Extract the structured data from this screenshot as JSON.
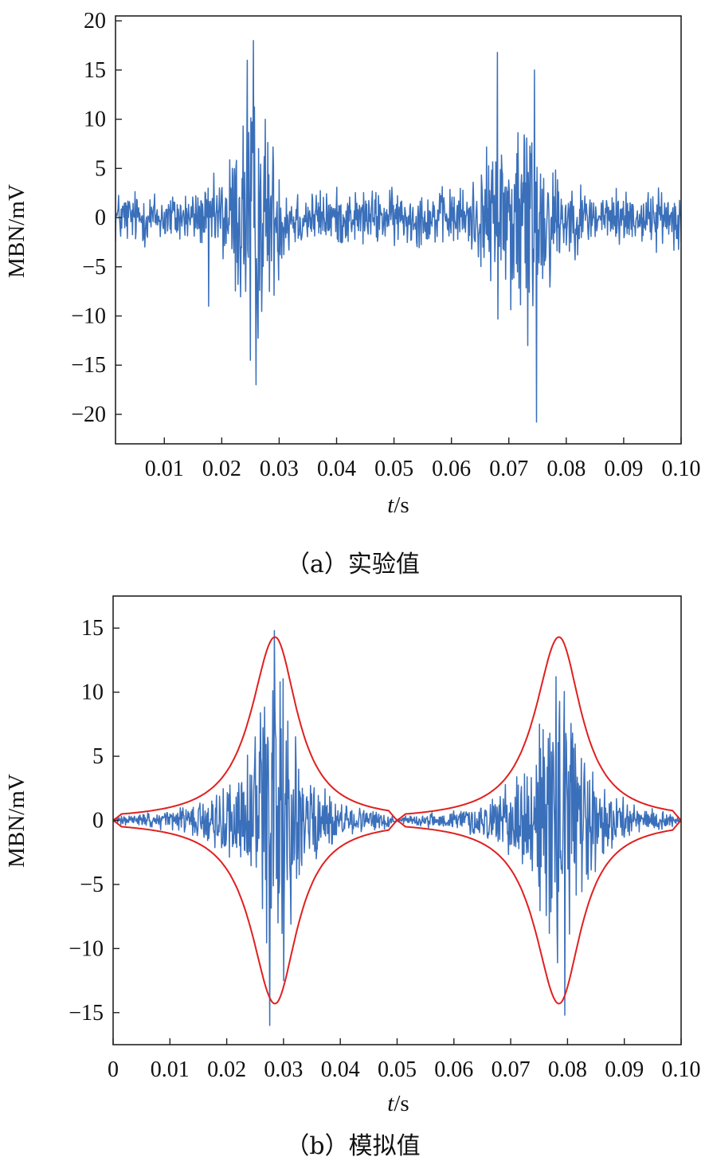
{
  "chart_data": [
    {
      "type": "line",
      "caption": "（a）实验值",
      "xlabel_italic": "t",
      "xlabel_unit": "/s",
      "ylabel": "MBN/mV",
      "xlim": [
        0.0015,
        0.1
      ],
      "ylim": [
        -23,
        20.5
      ],
      "x_ticks": [
        0.01,
        0.02,
        0.03,
        0.04,
        0.05,
        0.06,
        0.07,
        0.08,
        0.09,
        0.1
      ],
      "x_tick_labels": [
        "0.01",
        "0.02",
        "0.03",
        "0.04",
        "0.05",
        "0.06",
        "0.07",
        "0.08",
        "0.09",
        "0.10"
      ],
      "y_ticks": [
        20,
        15,
        10,
        5,
        0,
        -5,
        -10,
        -15,
        -20
      ],
      "y_tick_labels": [
        "20",
        "15",
        "10",
        "5",
        "0",
        "−5",
        "−10",
        "−15",
        "−20"
      ],
      "grid": false,
      "legend": "none",
      "series": [
        {
          "color": "#3a6fba",
          "signal": {
            "t_start": 0.0015,
            "t_end": 0.1,
            "samples": 1100,
            "baseline_amplitude": 2.2,
            "bursts": [
              {
                "center": 0.0255,
                "width": 0.0045,
                "amplitude": 7.5
              },
              {
                "center": 0.072,
                "width": 0.006,
                "amplitude": 7.0
              }
            ],
            "peaks": [
              [
                0.0255,
                18.0
              ],
              [
                0.026,
                -17.0
              ],
              [
                0.025,
                -14.5
              ],
              [
                0.0244,
                16.0
              ],
              [
                0.068,
                16.8
              ],
              [
                0.0745,
                15.0
              ],
              [
                0.0748,
                -20.8
              ],
              [
                0.0733,
                -13.0
              ],
              [
                0.0177,
                -9.0
              ]
            ]
          }
        }
      ]
    },
    {
      "type": "line",
      "caption": "（b）模拟值",
      "xlabel_italic": "t",
      "xlabel_unit": "/s",
      "ylabel": "MBN/mV",
      "xlim": [
        0,
        0.1
      ],
      "ylim": [
        -17.5,
        17.5
      ],
      "x_ticks": [
        0,
        0.01,
        0.02,
        0.03,
        0.04,
        0.05,
        0.06,
        0.07,
        0.08,
        0.09,
        0.1
      ],
      "x_tick_labels": [
        "0",
        "0.01",
        "0.02",
        "0.03",
        "0.04",
        "0.05",
        "0.06",
        "0.07",
        "0.08",
        "0.09",
        "0.10"
      ],
      "y_ticks": [
        15,
        10,
        5,
        0,
        -5,
        -10,
        -15
      ],
      "y_tick_labels": [
        "15",
        "10",
        "5",
        "0",
        "−5",
        "−10",
        "−15"
      ],
      "grid": false,
      "legend": "none",
      "series": [
        {
          "color": "#3a6fba",
          "signal": {
            "t_start": 0,
            "t_end": 0.1,
            "samples": 1100,
            "envelope_fill": 0.55,
            "peaks": [
              [
                0.0284,
                14.8
              ],
              [
                0.0276,
                -16.0
              ],
              [
                0.078,
                11.2
              ],
              [
                0.0795,
                -15.2
              ],
              [
                0.03,
                -12.5
              ]
            ]
          }
        },
        {
          "color": "#e02020",
          "envelope": {
            "amplitude": 14.3,
            "cycles": [
              {
                "start": 0.0,
                "peak": 0.0285,
                "end": 0.05
              },
              {
                "start": 0.05,
                "peak": 0.0785,
                "end": 0.1
              }
            ]
          }
        }
      ]
    }
  ]
}
